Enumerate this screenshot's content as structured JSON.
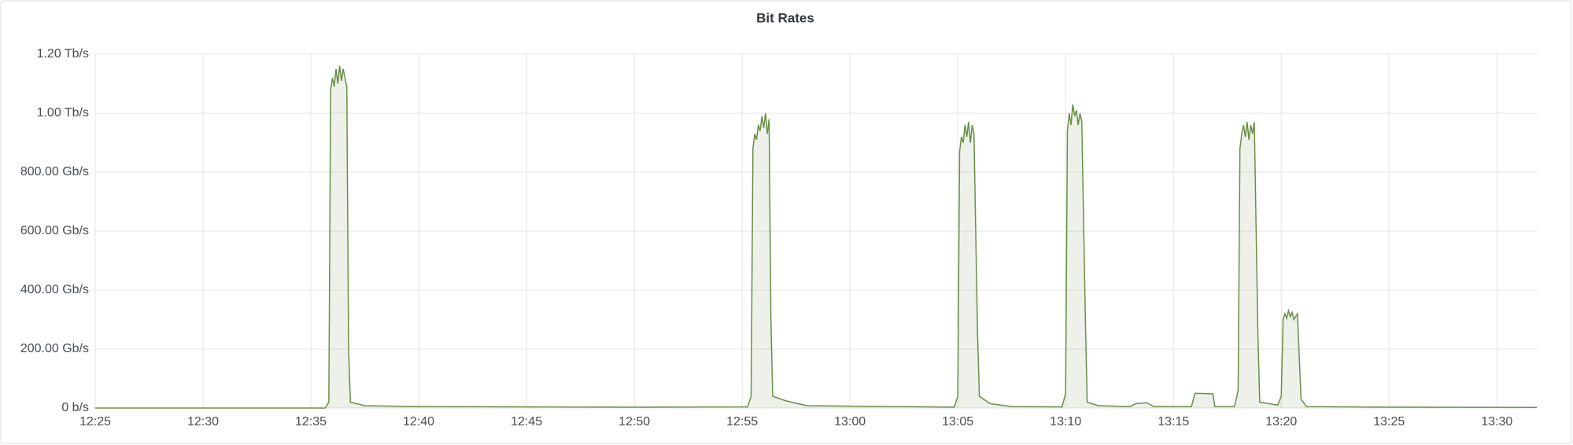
{
  "chart_data": {
    "type": "area",
    "title": "Bit Rates",
    "color": "#6a8f47",
    "x": [
      "12:25:00",
      "12:35:40",
      "12:35:50",
      "12:35:55",
      "12:36:00",
      "12:36:05",
      "12:36:10",
      "12:36:15",
      "12:36:20",
      "12:36:25",
      "12:36:30",
      "12:36:35",
      "12:36:40",
      "12:36:45",
      "12:36:50",
      "12:37:30",
      "12:40:00",
      "12:50:00",
      "12:55:15",
      "12:55:25",
      "12:55:30",
      "12:55:35",
      "12:55:40",
      "12:55:45",
      "12:55:50",
      "12:55:55",
      "12:56:00",
      "12:56:05",
      "12:56:10",
      "12:56:15",
      "12:56:20",
      "12:56:25",
      "12:57:00",
      "12:58:00",
      "13:04:50",
      "13:05:00",
      "13:05:05",
      "13:05:10",
      "13:05:15",
      "13:05:20",
      "13:05:25",
      "13:05:30",
      "13:05:35",
      "13:05:40",
      "13:05:45",
      "13:05:55",
      "13:06:00",
      "13:06:30",
      "13:07:30",
      "13:09:50",
      "13:10:00",
      "13:10:05",
      "13:10:10",
      "13:10:15",
      "13:10:20",
      "13:10:25",
      "13:10:30",
      "13:10:35",
      "13:10:40",
      "13:10:45",
      "13:10:55",
      "13:11:00",
      "13:11:30",
      "13:13:00",
      "13:13:15",
      "13:13:45",
      "13:14:05",
      "13:15:50",
      "13:16:00",
      "13:16:50",
      "13:16:55",
      "13:17:50",
      "13:18:00",
      "13:18:05",
      "13:18:10",
      "13:18:15",
      "13:18:20",
      "13:18:25",
      "13:18:30",
      "13:18:35",
      "13:18:40",
      "13:18:45",
      "13:18:55",
      "13:19:00",
      "13:19:50",
      "13:20:00",
      "13:20:05",
      "13:20:10",
      "13:20:15",
      "13:20:20",
      "13:20:25",
      "13:20:30",
      "13:20:35",
      "13:20:45",
      "13:20:55",
      "13:21:10",
      "13:25:00",
      "13:31:51"
    ],
    "values": [
      0,
      0,
      20,
      1080,
      1120,
      1090,
      1150,
      1100,
      1160,
      1110,
      1150,
      1120,
      1090,
      200,
      20,
      8,
      5,
      3,
      4,
      40,
      880,
      930,
      910,
      960,
      940,
      990,
      950,
      1000,
      930,
      980,
      300,
      40,
      25,
      8,
      3,
      40,
      870,
      920,
      900,
      960,
      920,
      970,
      900,
      960,
      930,
      250,
      40,
      15,
      5,
      4,
      50,
      940,
      1000,
      960,
      1030,
      990,
      1010,
      960,
      1000,
      970,
      300,
      20,
      8,
      5,
      15,
      18,
      5,
      5,
      50,
      48,
      5,
      5,
      60,
      880,
      930,
      960,
      920,
      970,
      910,
      960,
      930,
      970,
      250,
      20,
      10,
      40,
      300,
      320,
      305,
      330,
      310,
      325,
      300,
      320,
      30,
      5,
      3,
      2
    ],
    "xlim": [
      "12:25:00",
      "13:31:51"
    ],
    "xticks": [
      "12:25",
      "12:30",
      "12:35",
      "12:40",
      "12:45",
      "12:50",
      "12:55",
      "13:00",
      "13:05",
      "13:10",
      "13:15",
      "13:20",
      "13:25",
      "13:30"
    ],
    "ylim": [
      0,
      1200
    ],
    "yticks": [
      {
        "value": 0,
        "label": "0 b/s"
      },
      {
        "value": 200,
        "label": "200.00 Gb/s"
      },
      {
        "value": 400,
        "label": "400.00 Gb/s"
      },
      {
        "value": 600,
        "label": "600.00 Gb/s"
      },
      {
        "value": 800,
        "label": "800.00 Gb/s"
      },
      {
        "value": 1000,
        "label": "1.00 Tb/s"
      },
      {
        "value": 1200,
        "label": "1.20 Tb/s"
      }
    ],
    "grid": true
  }
}
